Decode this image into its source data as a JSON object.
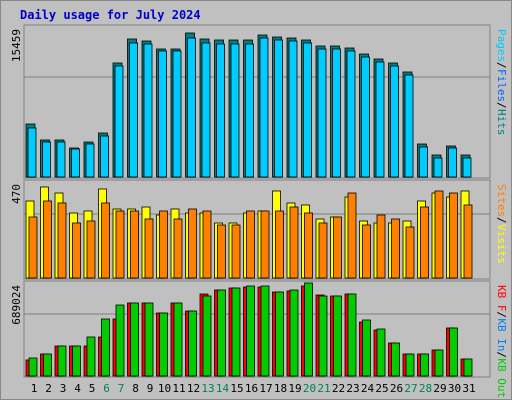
{
  "title": "Daily usage for July 2024",
  "colors": {
    "background": "#c0c0c0",
    "title": "#0000cc",
    "pages": "#00ccff",
    "files": "#0066ff",
    "hits": "#008080",
    "visits": "#ffff00",
    "sites": "#ff8000",
    "kb_in": "#0080ff",
    "kb_out": "#00cc00",
    "kb_f": "#ff0000",
    "weekend_label": "#00805a",
    "weekday_label": "#000000"
  },
  "chart_data": [
    {
      "type": "bar",
      "panel": "top",
      "ymax_label": "15459",
      "ylim": [
        0,
        15459
      ],
      "right_labels": [
        {
          "text": "Pages",
          "color_key": "pages"
        },
        {
          "text": "Files",
          "color_key": "files"
        },
        {
          "text": "Hits",
          "color_key": "hits"
        }
      ],
      "categories": [
        "1",
        "2",
        "3",
        "4",
        "5",
        "6",
        "7",
        "8",
        "9",
        "10",
        "11",
        "12",
        "13",
        "14",
        "15",
        "16",
        "17",
        "18",
        "19",
        "20",
        "21",
        "22",
        "23",
        "24",
        "25",
        "26",
        "27",
        "28",
        "29",
        "30",
        "31"
      ],
      "series": [
        {
          "name": "Hits",
          "values": [
            5550,
            3900,
            3900,
            3100,
            3700,
            4600,
            12000,
            14500,
            14300,
            13500,
            13500,
            15100,
            14500,
            14400,
            14400,
            14400,
            14900,
            14700,
            14600,
            14400,
            13800,
            13800,
            13600,
            12900,
            12400,
            12000,
            11000,
            3500,
            2300,
            3300,
            2300
          ]
        },
        {
          "name": "Files",
          "values": [
            5200,
            3700,
            3700,
            2900,
            3500,
            4300,
            11700,
            14100,
            14000,
            13200,
            13200,
            14600,
            14100,
            14000,
            14000,
            14000,
            14600,
            14400,
            14300,
            14100,
            13500,
            13500,
            13300,
            12600,
            12100,
            11700,
            10700,
            3200,
            2000,
            3000,
            2000
          ]
        }
      ]
    },
    {
      "type": "bar",
      "panel": "middle",
      "ymax_label": "470",
      "ylim": [
        0,
        470
      ],
      "right_labels": [
        {
          "text": "Sites",
          "color_key": "sites"
        },
        {
          "text": "Visits",
          "color_key": "visits"
        }
      ],
      "categories": [
        "1",
        "2",
        "3",
        "4",
        "5",
        "6",
        "7",
        "8",
        "9",
        "10",
        "11",
        "12",
        "13",
        "14",
        "15",
        "16",
        "17",
        "18",
        "19",
        "20",
        "21",
        "22",
        "23",
        "24",
        "25",
        "26",
        "27",
        "28",
        "29",
        "30",
        "31"
      ],
      "series": [
        {
          "name": "Visits",
          "values": [
            390,
            460,
            430,
            330,
            340,
            450,
            350,
            350,
            360,
            320,
            350,
            330,
            330,
            280,
            280,
            330,
            340,
            440,
            380,
            370,
            300,
            310,
            410,
            290,
            280,
            280,
            290,
            390,
            430,
            410,
            440
          ]
        },
        {
          "name": "Sites",
          "values": [
            310,
            390,
            380,
            280,
            290,
            380,
            340,
            340,
            300,
            340,
            300,
            350,
            340,
            270,
            270,
            340,
            340,
            340,
            360,
            330,
            280,
            310,
            430,
            270,
            320,
            300,
            260,
            360,
            440,
            430,
            370
          ]
        }
      ]
    },
    {
      "type": "bar",
      "panel": "bottom",
      "ymax_label": "689024",
      "ylim": [
        0,
        689024
      ],
      "right_labels": [
        {
          "text": "KB F",
          "color_key": "kb_f"
        },
        {
          "text": "KB In",
          "color_key": "kb_in"
        },
        {
          "text": "KB Out",
          "color_key": "kb_out"
        }
      ],
      "categories": [
        "1",
        "2",
        "3",
        "4",
        "5",
        "6",
        "7",
        "8",
        "9",
        "10",
        "11",
        "12",
        "13",
        "14",
        "15",
        "16",
        "17",
        "18",
        "19",
        "20",
        "21",
        "22",
        "23",
        "24",
        "25",
        "26",
        "27",
        "28",
        "29",
        "30",
        "31"
      ],
      "series": [
        {
          "name": "KB F",
          "values": [
            120000,
            170000,
            230000,
            230000,
            230000,
            300000,
            440000,
            560000,
            560000,
            480000,
            560000,
            500000,
            630000,
            660000,
            670000,
            680000,
            680000,
            640000,
            650000,
            690000,
            620000,
            610000,
            630000,
            410000,
            350000,
            250000,
            170000,
            170000,
            200000,
            370000,
            130000
          ]
        },
        {
          "name": "KB Out",
          "values": [
            140000,
            170000,
            230000,
            230000,
            300000,
            440000,
            540000,
            560000,
            560000,
            480000,
            560000,
            500000,
            610000,
            660000,
            670000,
            690000,
            690000,
            640000,
            660000,
            710000,
            610000,
            610000,
            630000,
            430000,
            360000,
            250000,
            170000,
            170000,
            200000,
            370000,
            130000
          ]
        }
      ]
    }
  ],
  "x_labels": [
    {
      "text": "1",
      "weekend": false
    },
    {
      "text": "2",
      "weekend": false
    },
    {
      "text": "3",
      "weekend": false
    },
    {
      "text": "4",
      "weekend": false
    },
    {
      "text": "5",
      "weekend": false
    },
    {
      "text": "6",
      "weekend": true
    },
    {
      "text": "7",
      "weekend": true
    },
    {
      "text": "8",
      "weekend": false
    },
    {
      "text": "9",
      "weekend": false
    },
    {
      "text": "10",
      "weekend": false
    },
    {
      "text": "11",
      "weekend": false
    },
    {
      "text": "12",
      "weekend": false
    },
    {
      "text": "13",
      "weekend": true
    },
    {
      "text": "14",
      "weekend": true
    },
    {
      "text": "15",
      "weekend": false
    },
    {
      "text": "16",
      "weekend": false
    },
    {
      "text": "17",
      "weekend": false
    },
    {
      "text": "18",
      "weekend": false
    },
    {
      "text": "19",
      "weekend": false
    },
    {
      "text": "20",
      "weekend": true
    },
    {
      "text": "21",
      "weekend": true
    },
    {
      "text": "22",
      "weekend": false
    },
    {
      "text": "23",
      "weekend": false
    },
    {
      "text": "24",
      "weekend": false
    },
    {
      "text": "25",
      "weekend": false
    },
    {
      "text": "26",
      "weekend": false
    },
    {
      "text": "27",
      "weekend": true
    },
    {
      "text": "28",
      "weekend": true
    },
    {
      "text": "29",
      "weekend": false
    },
    {
      "text": "30",
      "weekend": false
    },
    {
      "text": "31",
      "weekend": false
    }
  ]
}
